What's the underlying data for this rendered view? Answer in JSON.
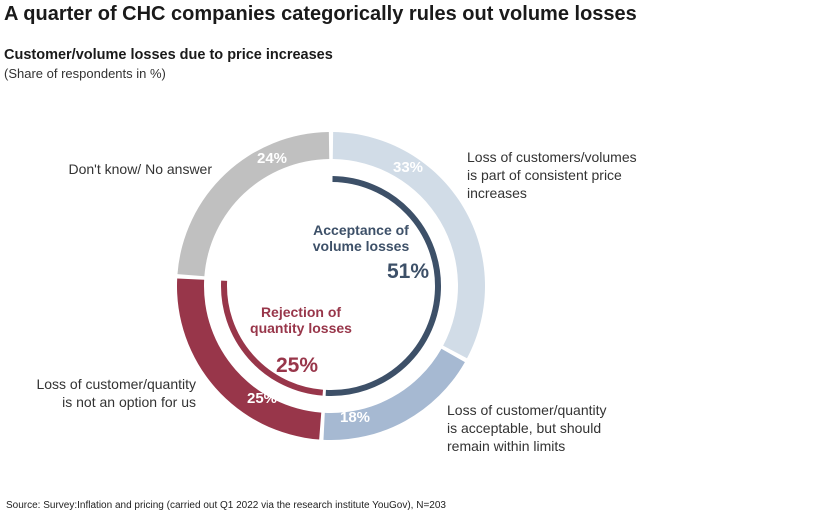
{
  "title": "A quarter of CHC companies categorically rules out volume losses",
  "subtitle": "Customer/volume losses due to price increases",
  "note": "(Share of respondents in %)",
  "source": "Source: Survey:Inflation and pricing (carried out Q1 2022 via the research institute YouGov), N=203",
  "chart_data": {
    "type": "pie",
    "variant": "donut",
    "slices": [
      {
        "label_lines": [
          "Loss of customers/volumes",
          "is part of consistent  price",
          "increases"
        ],
        "value": 33,
        "display": "33%",
        "color": "#d1dce7"
      },
      {
        "label_lines": [
          "Loss of customer/quantity",
          "is acceptable, but should",
          "remain within limits"
        ],
        "value": 18,
        "display": "18%",
        "color": "#a6b9d2"
      },
      {
        "label_lines": [
          "Loss of customer/quantity",
          "is not an option for us"
        ],
        "value": 25,
        "display": "25%",
        "color": "#98364a"
      },
      {
        "label_lines": [
          "Don't know/ No answer"
        ],
        "value": 24,
        "display": "24%",
        "color": "#c0c0c0"
      }
    ],
    "inner_rings": [
      {
        "label_lines": [
          "Acceptance of",
          "volume losses"
        ],
        "value": 51,
        "display": "51%",
        "color": "#3d5068"
      },
      {
        "label_lines": [
          "Rejection of",
          "quantity losses"
        ],
        "value": 25,
        "display": "25%",
        "color": "#98364a"
      }
    ]
  }
}
